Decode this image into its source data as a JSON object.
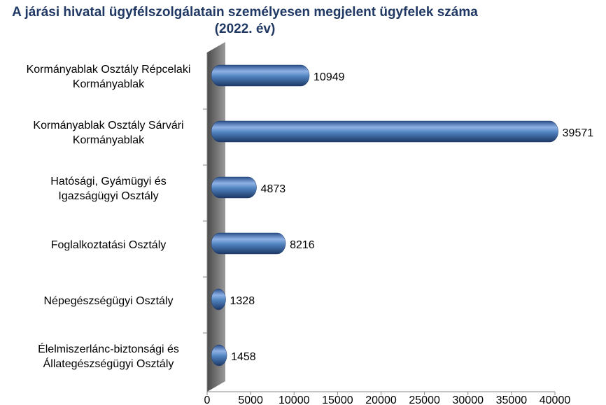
{
  "chart_data": {
    "type": "bar",
    "orientation": "horizontal",
    "title": "A járási hivatal ügyfélszolgálatain személyesen megjelent ügyfelek száma (2022. év)",
    "categories": [
      "Kormányablak Osztály Répcelaki Kormányablak",
      "Kormányablak Osztály Sárvári Kormányablak",
      "Hatósági, Gyámügyi és Igazságügyi Osztály",
      "Foglalkoztatási Osztály",
      "Népegészségügyi Osztály",
      "Élelmiszerlánc-biztonsági és Állategészségügyi Osztály"
    ],
    "values": [
      10949,
      39571,
      4873,
      8216,
      1328,
      1458
    ],
    "color": "#4f81bd",
    "xlim": [
      0,
      40000
    ],
    "xticks": [
      0,
      5000,
      10000,
      15000,
      20000,
      25000,
      30000,
      35000,
      40000
    ],
    "grid": false
  }
}
